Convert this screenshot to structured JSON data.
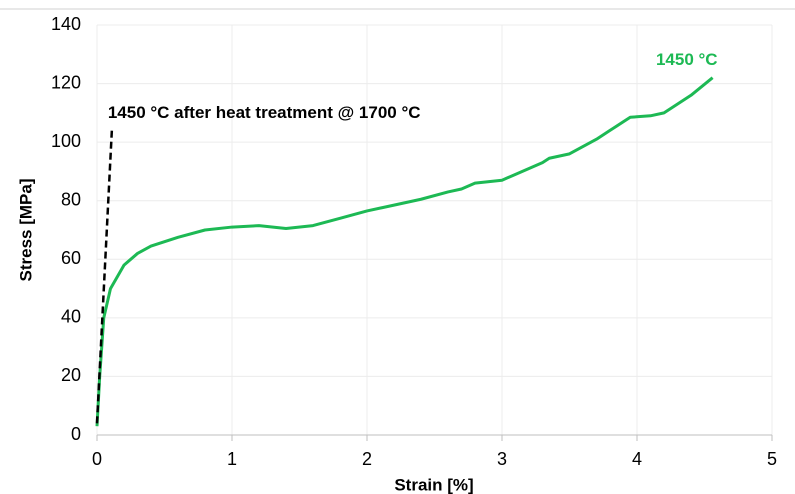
{
  "chart_data": {
    "type": "line",
    "x_label": "Strain [%]",
    "y_label": "Stress [MPa]",
    "xlim": [
      0,
      5
    ],
    "ylim": [
      0,
      140
    ],
    "xticks": [
      0,
      1,
      2,
      3,
      4,
      5
    ],
    "yticks": [
      0,
      20,
      40,
      60,
      80,
      100,
      120,
      140
    ],
    "grid": true,
    "series": [
      {
        "name": "1450 °C",
        "color": "#1db954",
        "line_style": "solid",
        "x": [
          0,
          0.02,
          0.05,
          0.1,
          0.2,
          0.3,
          0.4,
          0.6,
          0.8,
          1.0,
          1.2,
          1.4,
          1.6,
          1.8,
          2.0,
          2.2,
          2.4,
          2.6,
          2.7,
          2.8,
          3.0,
          3.1,
          3.3,
          3.35,
          3.5,
          3.7,
          3.8,
          3.9,
          3.95,
          4.1,
          4.2,
          4.4,
          4.56
        ],
        "values": [
          3,
          20,
          40,
          50,
          58,
          62,
          64.5,
          67.5,
          70,
          71,
          71.5,
          70.5,
          71.5,
          74,
          76.5,
          78.5,
          80.5,
          83,
          84,
          86,
          87,
          89,
          93,
          94.5,
          96,
          101,
          104,
          107,
          108.5,
          109,
          110,
          116,
          122
        ]
      },
      {
        "name": "1450 °C after heat treatment @ 1700 °C",
        "color": "#000000",
        "line_style": "dashed",
        "x": [
          0,
          0.11
        ],
        "values": [
          4,
          104
        ]
      }
    ]
  }
}
